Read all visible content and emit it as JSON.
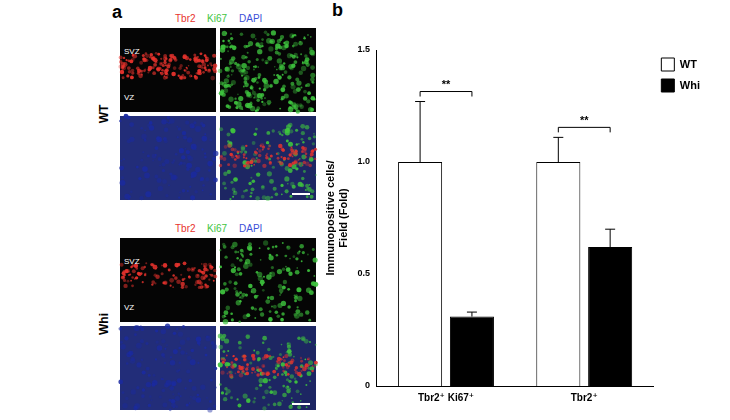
{
  "panel_a": {
    "label": "a",
    "channels": [
      {
        "name": "Tbr2",
        "color": "#e8332d"
      },
      {
        "name": "Ki67",
        "color": "#3ec43e"
      },
      {
        "name": "DAPI",
        "color": "#3b4fd8"
      }
    ],
    "region_labels": [
      "SVZ",
      "VZ"
    ],
    "groups": [
      "WT",
      "Whi"
    ]
  },
  "panel_b": {
    "label": "b"
  },
  "chart_data": {
    "type": "bar",
    "categories": [
      "Tbr2⁺ Ki67⁺",
      "Tbr2⁺"
    ],
    "ylabel": [
      "Immunopositive cells/",
      "Field (Fold)"
    ],
    "series": [
      {
        "name": "WT",
        "color": "#ffffff",
        "values": [
          1.0,
          1.0
        ],
        "errors": [
          0.27,
          0.11
        ]
      },
      {
        "name": "Whi",
        "color": "#000000",
        "values": [
          0.31,
          0.62
        ],
        "errors": [
          0.02,
          0.08
        ]
      }
    ],
    "ylim": [
      0,
      1.5
    ],
    "yticks": [
      0,
      0.5,
      {
        "value": 1,
        "label": "1.0"
      },
      1.5
    ],
    "grid": false,
    "legend": "top-right",
    "annotations": [
      {
        "text": "**",
        "category": "Tbr2⁺ Ki67⁺"
      },
      {
        "text": "**",
        "category": "Tbr2⁺"
      }
    ]
  }
}
